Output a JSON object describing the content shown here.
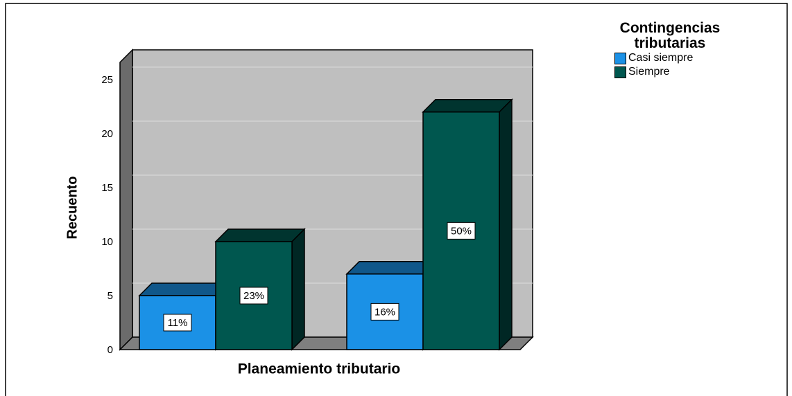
{
  "chart_data": {
    "type": "bar3d",
    "categories": [
      null,
      null
    ],
    "series": [
      {
        "name": "Casi siempre",
        "color": "#1b91e6",
        "values": [
          5,
          7
        ],
        "value_labels": [
          "11%",
          "16%"
        ]
      },
      {
        "name": "Siempre",
        "color": "#00574f",
        "values": [
          10,
          22
        ],
        "value_labels": [
          "23%",
          "50%"
        ]
      }
    ],
    "legend_title": "Contingencias tributarias",
    "xlabel": "Planeamiento tributario",
    "ylabel": "Recuento",
    "ylim": [
      0,
      26.6
    ],
    "yticks": [
      0,
      5,
      10,
      15,
      20,
      25
    ],
    "grid": true,
    "legend": "upper right"
  }
}
